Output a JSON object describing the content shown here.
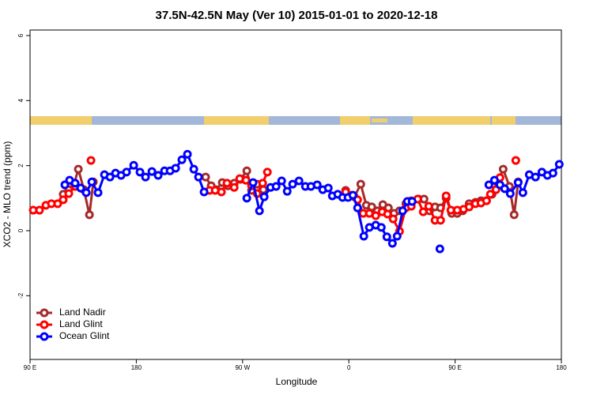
{
  "chart_data": {
    "type": "line",
    "title": "37.5N-42.5N May (Ver 10)   2015-01-01 to 2020-12-18",
    "x_label": "Longitude",
    "y_label": "XCO2 - MLO trend (ppm)",
    "xlim": [
      90,
      540
    ],
    "xticks": [
      {
        "value": 90,
        "label": "90 E"
      },
      {
        "value": 180,
        "label": "180"
      },
      {
        "value": 270,
        "label": "90 W"
      },
      {
        "value": 360,
        "label": "0"
      },
      {
        "value": 450,
        "label": "90 E"
      },
      {
        "value": 540,
        "label": "180"
      }
    ],
    "ylim": [
      -3.96,
      6.17
    ],
    "yticks": [
      -2,
      0,
      2,
      4,
      6
    ],
    "grid": false,
    "legend": "bottomleft",
    "series": [
      {
        "name": "Land Nadir",
        "color": "#a52a2a",
        "x": [
          118.1,
          122.8,
          127.5,
          130.9,
          135.6,
          140.3,
          143.6,
          null,
          238.7,
          243.4,
          247.5,
          252.8,
          257.5,
          262.9,
          268.2,
          273.6,
          277.6,
          282.3,
          287.6,
          null,
          357.3,
          364.7,
          370.1,
          374.8,
          379.4,
          384.1,
          388.8,
          393.5,
          398.2,
          402.9,
          408.3,
          412.9,
          419.0,
          423.7,
          428.4,
          433.0,
          437.7,
          442.4,
          447.1,
          451.8,
          456.5,
          461.9,
          467.2,
          471.9,
          476.6,
          481.3,
          486.0,
          490.7,
          496.0,
          500.0,
          503.4
        ],
        "values": [
          1.12,
          1.26,
          1.46,
          1.89,
          1.26,
          0.49,
          1.5,
          null,
          1.65,
          1.38,
          1.26,
          1.48,
          1.38,
          1.46,
          1.58,
          1.84,
          1.24,
          1.43,
          1.26,
          null,
          1.24,
          1.04,
          1.43,
          0.78,
          0.73,
          0.61,
          0.8,
          0.7,
          0.53,
          0.61,
          0.83,
          0.92,
          0.97,
          0.97,
          0.61,
          0.73,
          0.7,
          1.0,
          0.53,
          0.53,
          0.61,
          0.83,
          0.87,
          0.92,
          0.92,
          1.12,
          1.48,
          1.89,
          1.36,
          0.49,
          1.5
        ]
      },
      {
        "name": "Land Glint",
        "color": "#ff0000",
        "x": [
          92.7,
          98.0,
          103.4,
          108.1,
          113.4,
          118.1,
          122.8,
          128.2,
          null,
          141.6,
          null,
          242.1,
          246.8,
          252.1,
          256.8,
          262.9,
          267.6,
          272.9,
          277.6,
          282.3,
          287.0,
          291.0,
          null,
          357.3,
          362.7,
          367.4,
          372.1,
          377.4,
          382.8,
          388.2,
          392.8,
          397.5,
          402.9,
          408.3,
          412.9,
          418.3,
          423.0,
          427.7,
          433.0,
          437.7,
          442.4,
          446.4,
          451.8,
          457.2,
          461.9,
          467.2,
          471.9,
          476.6,
          479.9,
          484.6,
          488.0,
          null,
          501.4
        ],
        "values": [
          0.63,
          0.63,
          0.78,
          0.83,
          0.83,
          0.95,
          1.14,
          1.36,
          null,
          2.16,
          null,
          1.24,
          1.24,
          1.19,
          1.46,
          1.33,
          1.6,
          1.55,
          1.38,
          1.14,
          1.46,
          1.8,
          null,
          1.19,
          1.09,
          0.95,
          0.53,
          0.53,
          0.46,
          0.58,
          0.51,
          0.36,
          -0.02,
          0.7,
          0.75,
          0.97,
          0.58,
          0.75,
          0.32,
          0.32,
          1.07,
          0.63,
          0.63,
          0.66,
          0.73,
          0.83,
          0.85,
          0.92,
          1.12,
          1.26,
          1.63,
          null,
          2.16
        ]
      },
      {
        "name": "Ocean Glint",
        "color": "#0000ff",
        "x": [
          119.5,
          123.5,
          128.2,
          132.9,
          137.6,
          142.3,
          147.6,
          153.0,
          157.7,
          162.4,
          167.1,
          171.7,
          177.8,
          183.1,
          187.8,
          193.2,
          198.5,
          203.9,
          208.6,
          213.3,
          218.6,
          223.3,
          228.7,
          232.7,
          237.4,
          null,
          273.6,
          278.9,
          284.3,
          288.3,
          293.7,
          298.4,
          303.1,
          307.8,
          312.4,
          317.8,
          323.2,
          327.9,
          333.2,
          337.9,
          342.6,
          346.0,
          350.6,
          354.7,
          359.3,
          363.4,
          367.4,
          372.7,
          377.4,
          382.8,
          387.5,
          392.2,
          396.9,
          400.9,
          405.6,
          409.6,
          413.6,
          null,
          437.1,
          null,
          478.6,
          483.3,
          488.0,
          492.0,
          496.7,
          503.4,
          507.4,
          512.8,
          518.1,
          523.5,
          528.2,
          532.9,
          538.2
        ],
        "values": [
          1.41,
          1.55,
          1.46,
          1.31,
          1.17,
          1.5,
          1.17,
          1.72,
          1.65,
          1.77,
          1.7,
          1.8,
          2.01,
          1.8,
          1.65,
          1.82,
          1.7,
          1.84,
          1.84,
          1.92,
          2.18,
          2.35,
          1.89,
          1.65,
          1.19,
          null,
          1.0,
          1.48,
          0.61,
          1.04,
          1.33,
          1.36,
          1.53,
          1.21,
          1.43,
          1.53,
          1.36,
          1.36,
          1.41,
          1.26,
          1.31,
          1.07,
          1.12,
          1.02,
          1.02,
          1.09,
          0.7,
          -0.17,
          0.1,
          0.17,
          0.1,
          -0.19,
          -0.39,
          -0.17,
          0.61,
          0.9,
          0.9,
          null,
          -0.56,
          null,
          1.41,
          1.55,
          1.41,
          1.29,
          1.14,
          1.48,
          1.17,
          1.72,
          1.65,
          1.8,
          1.7,
          1.77,
          2.04
        ]
      }
    ]
  }
}
